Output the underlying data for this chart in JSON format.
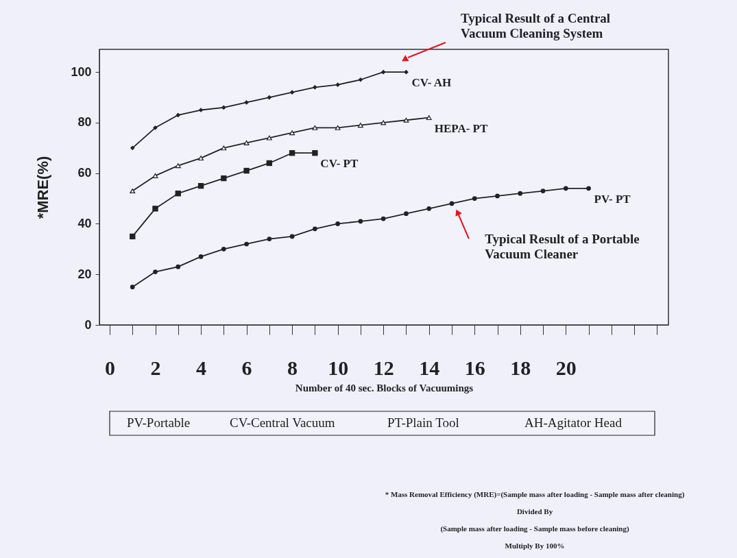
{
  "chart_data": {
    "type": "line",
    "ylabel": "*MRE(%)",
    "xlabel": "Number of 40 sec.  Blocks  of Vacuumings",
    "x": [
      1,
      2,
      3,
      4,
      5,
      6,
      7,
      8,
      9,
      10,
      11,
      12,
      13,
      14,
      15,
      16,
      17,
      18,
      19,
      20,
      21
    ],
    "series": [
      {
        "name": "CV- AH",
        "color": "#222222",
        "marker": "diamond",
        "values": [
          70,
          78,
          83,
          85,
          86,
          88,
          90,
          92,
          94,
          95,
          97,
          100,
          100,
          null,
          null,
          null,
          null,
          null,
          null,
          null,
          null
        ]
      },
      {
        "name": "HEPA- PT",
        "color": "#222222",
        "marker": "triangle",
        "values": [
          53,
          59,
          63,
          66,
          70,
          72,
          74,
          76,
          78,
          78,
          79,
          80,
          81,
          82,
          null,
          null,
          null,
          null,
          null,
          null,
          null
        ]
      },
      {
        "name": "CV- PT",
        "color": "#222222",
        "marker": "square",
        "values": [
          35,
          46,
          52,
          55,
          58,
          61,
          64,
          68,
          68,
          null,
          null,
          null,
          null,
          null,
          null,
          null,
          null,
          null,
          null,
          null,
          null
        ]
      },
      {
        "name": "PV- PT",
        "color": "#222222",
        "marker": "circle",
        "values": [
          15,
          21,
          23,
          27,
          30,
          32,
          34,
          35,
          38,
          40,
          41,
          42,
          44,
          46,
          48,
          50,
          51,
          52,
          53,
          54,
          54
        ]
      }
    ],
    "xlim": [
      -0.45,
      24.5
    ],
    "ylim": [
      0,
      109
    ],
    "xticks": [
      0,
      {
        "value": 1,
        "label": null
      },
      2,
      {
        "value": 3,
        "label": null
      },
      4,
      {
        "value": 5,
        "label": null
      },
      6,
      {
        "value": 7,
        "label": null
      },
      8,
      {
        "value": 9,
        "label": null
      },
      10,
      {
        "value": 11,
        "label": null
      },
      12,
      {
        "value": 13,
        "label": null
      },
      14,
      {
        "value": 15,
        "label": null
      },
      16,
      {
        "value": 17,
        "label": null
      },
      18,
      {
        "value": 19,
        "label": null
      },
      20,
      {
        "value": 21,
        "label": null
      },
      {
        "value": 22,
        "label": null
      },
      {
        "value": 23,
        "label": null
      },
      {
        "value": 24,
        "label": null
      }
    ],
    "yticks": [
      0,
      20,
      40,
      60,
      80,
      100
    ],
    "grid": false,
    "line_style": "solid",
    "annotations": [
      "Typical Result of a Central\nVacuum Cleaning System",
      {
        "text": "Typical Result of a Portable\nVacuum Cleaner",
        "x": 15.25,
        "y": 44.6
      },
      "PV-Portable",
      "CV-Central Vacuum",
      "PT-Plain Tool",
      "AH-Agitator Head",
      "* Mass Removal Efficiency (MRE)=(Sample mass after loading - Sample mass after cleaning)",
      "Divided By",
      "(Sample mass after loading - Sample mass before cleaning)",
      "Multiply By 100%"
    ]
  }
}
